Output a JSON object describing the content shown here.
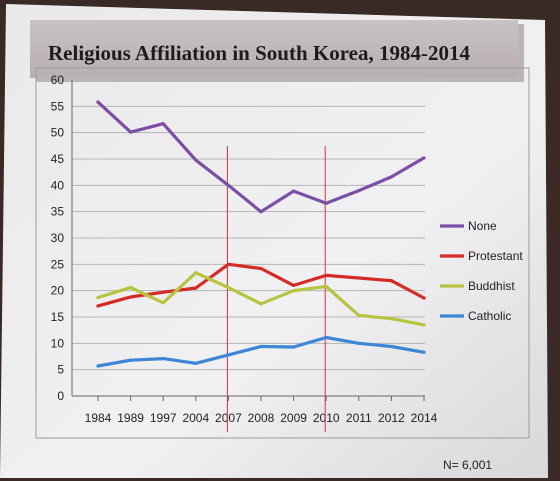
{
  "chart_data": {
    "type": "line",
    "title": "Religious Affiliation in South Korea, 1984-2014",
    "categories": [
      "1984",
      "1989",
      "1997",
      "2004",
      "2007",
      "2008",
      "2009",
      "2010",
      "2011",
      "2012",
      "2014"
    ],
    "ylim": [
      0,
      60
    ],
    "yticks": [
      0,
      5,
      10,
      15,
      20,
      25,
      30,
      35,
      40,
      45,
      50,
      55,
      60
    ],
    "xlabel": "",
    "ylabel": "",
    "grid": true,
    "legend_position": "right",
    "reference_lines": [
      "2007",
      "2010"
    ],
    "series": [
      {
        "name": "None",
        "color": "#7b4fa6",
        "values": [
          55.8,
          50.1,
          51.7,
          44.8,
          40.0,
          35.0,
          38.9,
          36.6,
          39.0,
          41.6,
          45.2
        ]
      },
      {
        "name": "Protestant",
        "color": "#d62a26",
        "values": [
          17.1,
          18.8,
          19.7,
          20.5,
          25.0,
          24.2,
          21.0,
          22.9,
          22.4,
          21.9,
          18.6
        ]
      },
      {
        "name": "Buddhist",
        "color": "#b6c43f",
        "values": [
          18.7,
          20.6,
          17.7,
          23.4,
          20.6,
          17.5,
          20.0,
          20.8,
          15.3,
          14.7,
          13.5
        ]
      },
      {
        "name": "Catholic",
        "color": "#3d86d6",
        "values": [
          5.7,
          6.8,
          7.1,
          6.2,
          7.8,
          9.4,
          9.3,
          11.1,
          10.0,
          9.4,
          8.3
        ]
      }
    ]
  },
  "footnote": "N= 6,001"
}
